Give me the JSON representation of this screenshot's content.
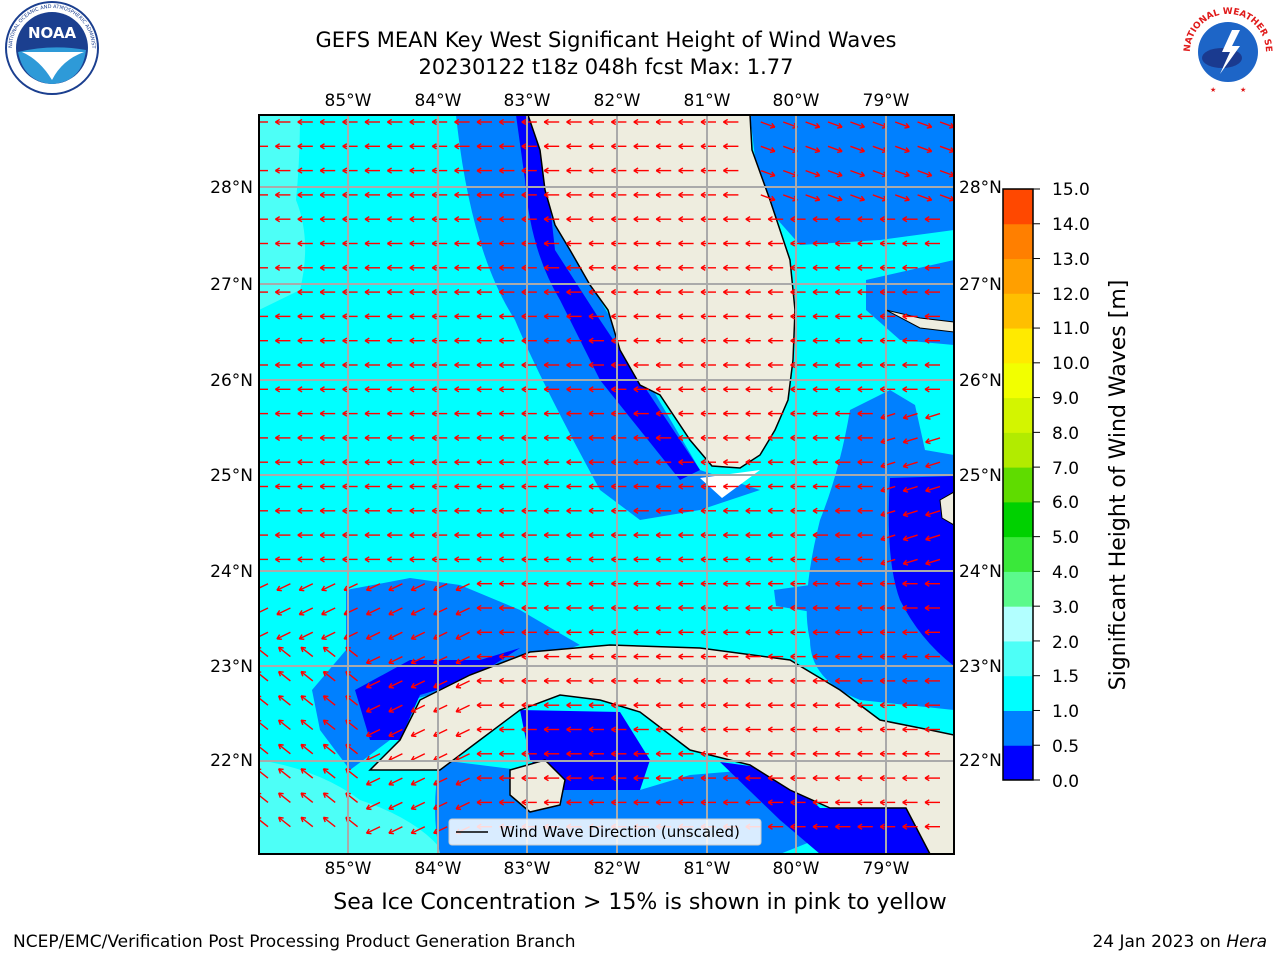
{
  "header": {
    "title": "GEFS MEAN Key West Significant Height of Wind Waves",
    "subtitle": "20230122 t18z 048h fcst   Max: 1.77"
  },
  "logos": {
    "noaa_text": "NOAA",
    "noaa_ring": "NATIONAL OCEANIC AND ATMOSPHERIC ADMINISTRATION · U.S. DEPARTMENT OF COMMERCE",
    "nws_text": "NATIONAL WEATHER SERVICE"
  },
  "map": {
    "lon_labels": [
      "85°W",
      "84°W",
      "83°W",
      "82°W",
      "81°W",
      "80°W",
      "79°W"
    ],
    "lat_labels": [
      "28°N",
      "27°N",
      "26°N",
      "25°N",
      "24°N",
      "23°N",
      "22°N"
    ],
    "legend": "Wind Wave Direction (unscaled)",
    "colors": {
      "land": "#eeeddf",
      "water_lt15": "#00ffff",
      "water_1to15": "#0080ff",
      "water_05to1": "#0000ff",
      "water_15to2": "#4dfff7",
      "arrows": "#ff0000"
    }
  },
  "colorbar": {
    "label": "Significant Height of Wind Waves [m]",
    "ticks": [
      "15.0",
      "14.0",
      "13.0",
      "12.0",
      "11.0",
      "10.0",
      "9.0",
      "8.0",
      "7.0",
      "6.0",
      "5.0",
      "4.0",
      "3.0",
      "2.0",
      "1.5",
      "1.0",
      "0.5",
      "0.0"
    ],
    "colors": [
      "#ff0000",
      "#ff2400",
      "#ff4800",
      "#ff7f00",
      "#ff9f00",
      "#ffbf00",
      "#ffea00",
      "#f2ff00",
      "#d3f500",
      "#b2eb00",
      "#5fdc00",
      "#00d100",
      "#3ae83a",
      "#5bfa8c",
      "#b2ffff",
      "#4dfff7",
      "#00ffff",
      "#0080ff",
      "#0000ff"
    ]
  },
  "notes": {
    "sea_ice": "Sea Ice Concentration > 15% is shown in pink to yellow"
  },
  "footer": {
    "left": "NCEP/EMC/Verification Post Processing Product Generation Branch",
    "date": "24 Jan 2023 on",
    "machine": "Hera"
  }
}
